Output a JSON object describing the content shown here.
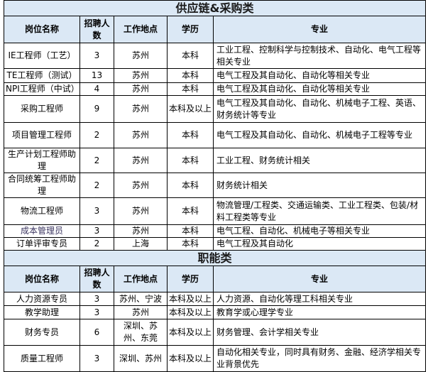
{
  "headers": [
    "岗位名称",
    "招聘人数",
    "工作地点",
    "学历",
    "专业"
  ],
  "sections": [
    {
      "title": "供应链&采购类",
      "rows": [
        {
          "name": "IE工程师（工艺）",
          "count": "3",
          "location": "苏州",
          "education": "本科",
          "major": "工业工程、控制科学与控制技术、自动化、电气工程等相关专业"
        },
        {
          "name": "TE工程师（测试）",
          "count": "13",
          "location": "苏州",
          "education": "本科",
          "major": "电气工程及其自动化、自动化等相关专业"
        },
        {
          "name": "NPI工程师（中试）",
          "count": "4",
          "location": "苏州",
          "education": "本科",
          "major": "电气工程及其自动化、自动化等相关专业"
        },
        {
          "name": "采购工程师",
          "count": "9",
          "location": "苏州",
          "education": "本科及以上",
          "major": "电气工程及其自动化、自动化、机械电子工程、英语、财务统计等专业"
        },
        {
          "name": "项目管理工程师",
          "count": "2",
          "location": "苏州",
          "education": "本科",
          "major": "电气工程及其自动化、自动化、机械电子工程等专业"
        },
        {
          "name": "生产计划工程师助理",
          "count": "2",
          "location": "苏州",
          "education": "本科",
          "major": "工业工程、财务统计相关"
        },
        {
          "name": "合同统筹工程师助理",
          "count": "2",
          "location": "苏州",
          "education": "本科",
          "major": "财务统计相关"
        },
        {
          "name": "物流工程师",
          "count": "3",
          "location": "苏州",
          "education": "本科",
          "major": "物流管理/工程类、交通运输类、工业工程类、包装/材料工程类等专业"
        },
        {
          "name": "成本管理员",
          "count": "3",
          "location": "苏州",
          "education": "本科",
          "major": "电气工程、自动化、机械电子等相关专业"
        },
        {
          "name": "订单评审专员",
          "count": "2",
          "location": "上海",
          "education": "本科",
          "major": "电气工程及其自动化"
        }
      ]
    },
    {
      "title": "职能类",
      "rows": [
        {
          "name": "人力资源专员",
          "count": "3",
          "location": "苏州、宁波",
          "education": "本科及以上",
          "major": "人力资源、自动化等理工科相关专业"
        },
        {
          "name": "教学助理",
          "count": "3",
          "location": "苏州",
          "education": "本科及以上",
          "major": "教育学或心理学专业"
        },
        {
          "name": "财务专员",
          "count": "6",
          "location": "深圳、苏州、东莞",
          "education": "本科及以上",
          "major": "财务管理、会计学相关专业"
        },
        {
          "name": "质量工程师",
          "count": "3",
          "location": "深圳、苏州",
          "education": "本科及以上",
          "major": "自动化相关专业，同时具有财务、金融、经济学相关专业背景优先"
        }
      ]
    }
  ]
}
